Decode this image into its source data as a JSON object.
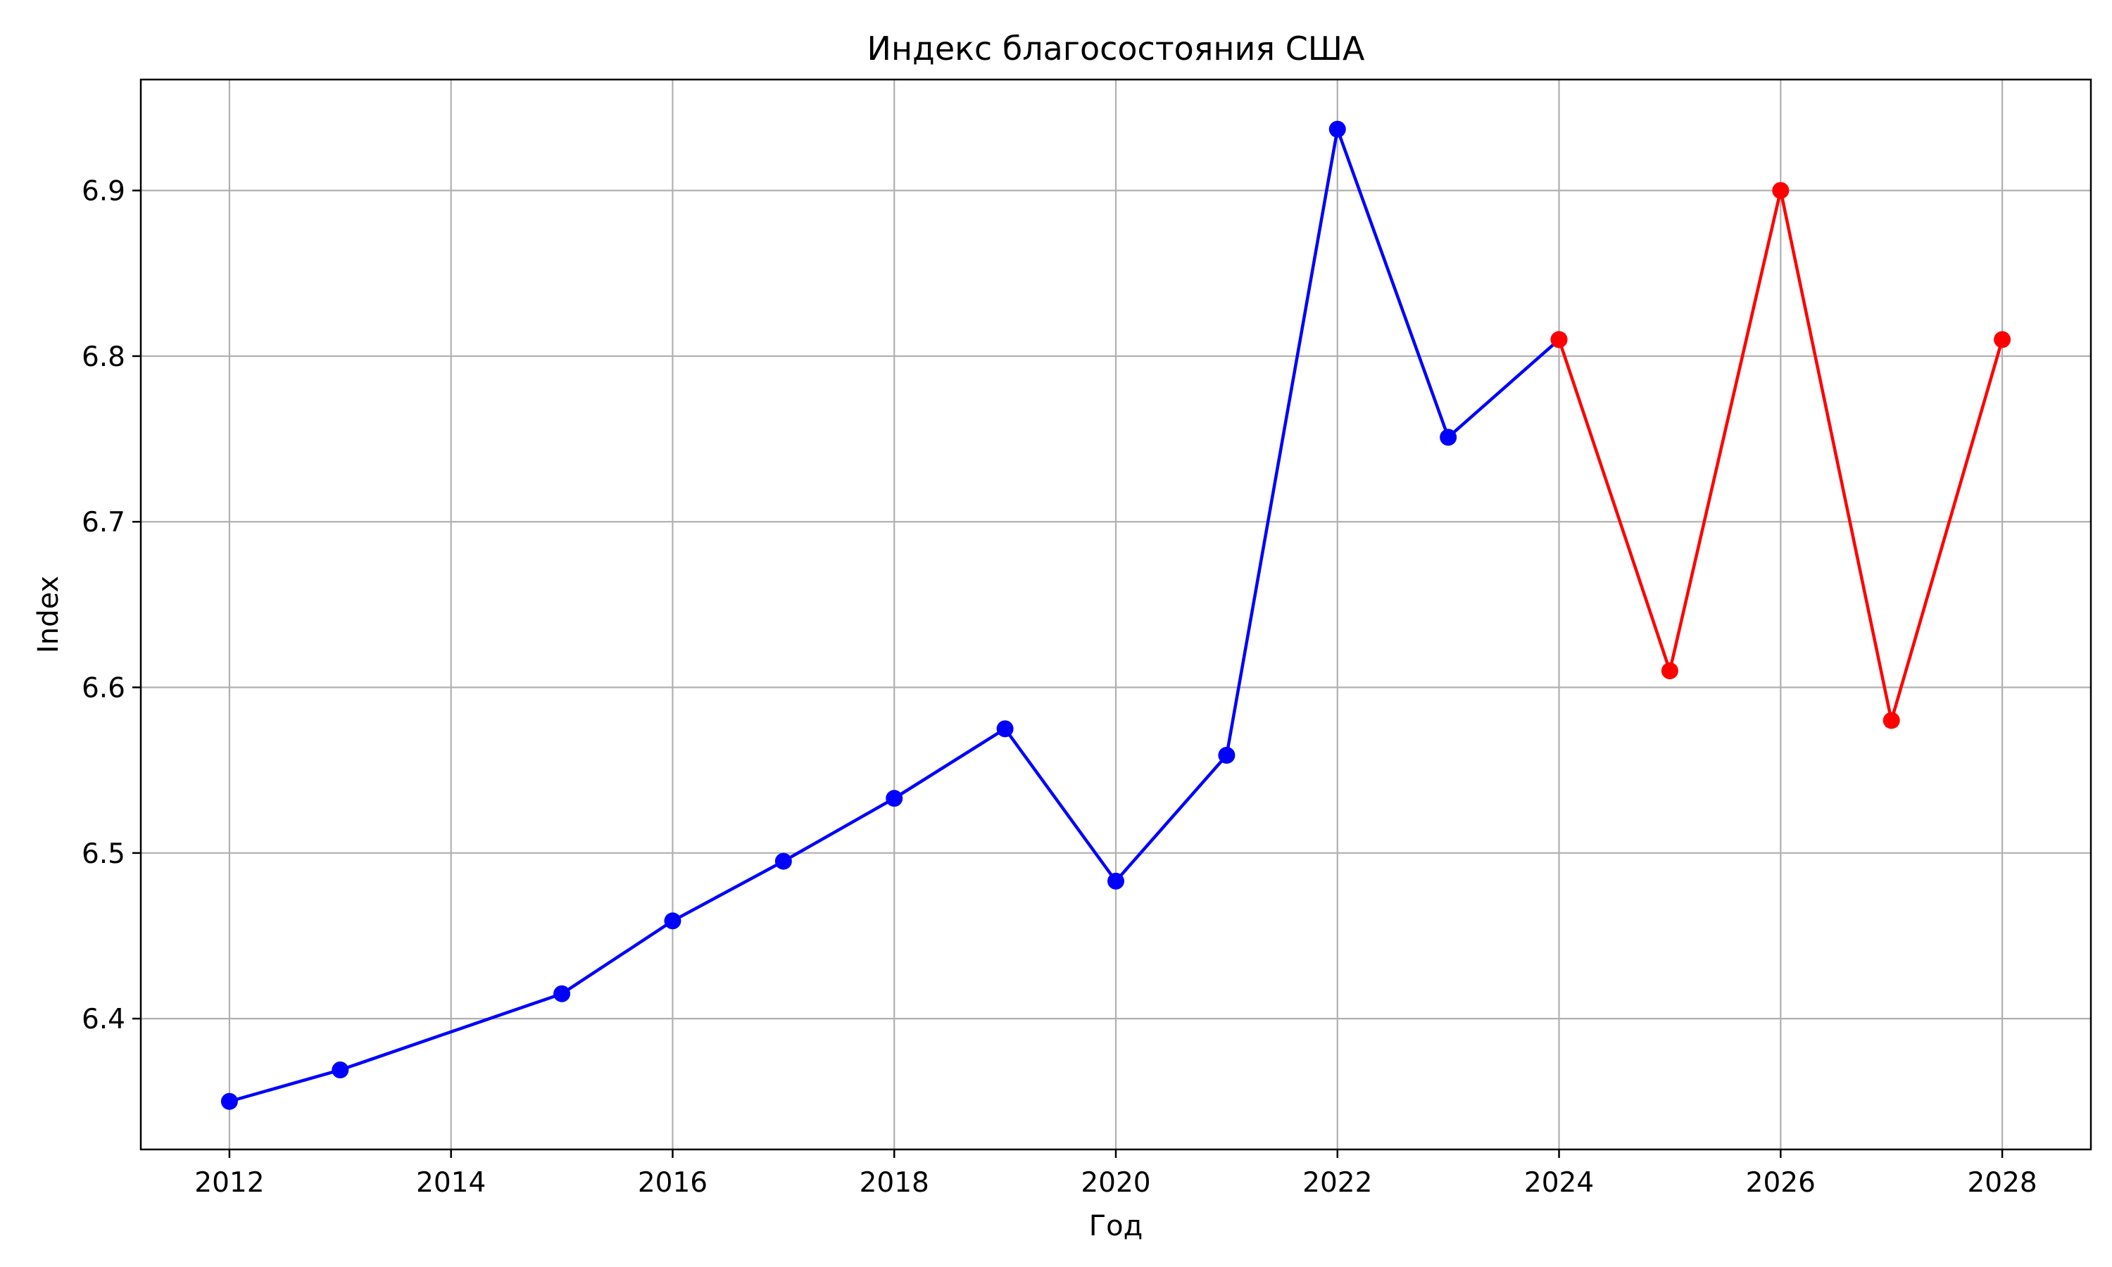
{
  "chart_data": {
    "type": "line",
    "title": "Индекс благосостояния США",
    "xlabel": "Год",
    "ylabel": "Index",
    "xlim": [
      2011.2,
      2028.8
    ],
    "ylim": [
      6.321,
      6.967
    ],
    "xticks": [
      2012,
      2014,
      2016,
      2018,
      2020,
      2022,
      2024,
      2026,
      2028
    ],
    "yticks": [
      6.4,
      6.5,
      6.6,
      6.7,
      6.8,
      6.9
    ],
    "grid": true,
    "series": [
      {
        "color": "#0000ff",
        "x": [
          2012,
          2013,
          2015,
          2016,
          2017,
          2018,
          2019,
          2020,
          2021,
          2022,
          2023,
          2024
        ],
        "y": [
          6.35,
          6.369,
          6.415,
          6.459,
          6.495,
          6.533,
          6.575,
          6.483,
          6.559,
          6.937,
          6.751,
          6.81
        ]
      },
      {
        "color": "#ff0000",
        "x": [
          2024,
          2025,
          2026,
          2027,
          2028
        ],
        "y": [
          6.81,
          6.61,
          6.9,
          6.58,
          6.81
        ]
      }
    ]
  }
}
